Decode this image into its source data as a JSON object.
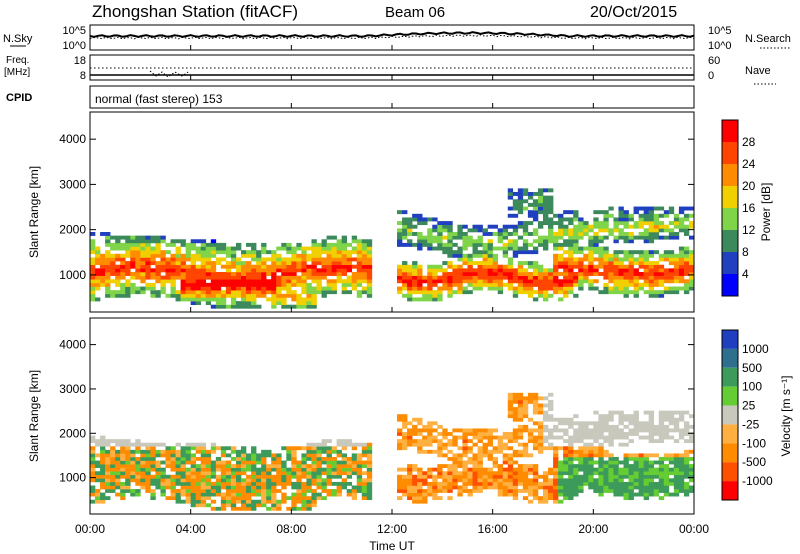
{
  "header": {
    "title": "Zhongshan Station (fitACF)",
    "beam": "Beam 06",
    "date": "20/Oct/2015"
  },
  "top_panels": {
    "nsky_label": "N.Sky",
    "nsearch_label": "N.Search",
    "nsky_ticks": [
      "10^5",
      "10^0"
    ],
    "nsearch_ticks": [
      "10^5",
      "10^0"
    ],
    "freq_label_line1": "Freq.",
    "freq_label_line2": "[MHz]",
    "freq_ticks": [
      "18",
      "8"
    ],
    "nave_label": "Nave",
    "nave_ticks": [
      "60",
      "0"
    ],
    "cpid_label": "CPID",
    "cpid_text": "normal (fast stereo) 153"
  },
  "chart_data": [
    {
      "type": "heatmap",
      "name": "power",
      "ylabel": "Slant Range [km]",
      "yticks": [
        1000,
        2000,
        3000,
        4000
      ],
      "ylim": [
        180,
        4600
      ],
      "xlim": [
        0,
        24
      ],
      "colorbar": {
        "label": "Power [dB]",
        "ticks": [
          "4",
          "8",
          "12",
          "16",
          "20",
          "24",
          "28"
        ],
        "colors": [
          "#0000ff",
          "#2040c0",
          "#3c8a5c",
          "#7fd44a",
          "#f0d000",
          "#ff8c00",
          "#ff4500",
          "#ff0000"
        ]
      }
    },
    {
      "type": "heatmap",
      "name": "velocity",
      "ylabel": "Slant Range [km]",
      "yticks": [
        1000,
        2000,
        3000,
        4000
      ],
      "ylim": [
        180,
        4600
      ],
      "xlim": [
        0,
        24
      ],
      "xticks": [
        "00:00",
        "04:00",
        "08:00",
        "12:00",
        "16:00",
        "20:00",
        "00:00"
      ],
      "xlabel": "Time UT",
      "colorbar": {
        "label": "Velocity [m s⁻¹]",
        "ticks": [
          "1000",
          "500",
          "100",
          "25",
          "-25",
          "-100",
          "-500",
          "-1000"
        ],
        "colors": [
          "#1f3fbf",
          "#2e6f8e",
          "#3c9a5a",
          "#66cc33",
          "#c8c8bc",
          "#ffb040",
          "#ff8c00",
          "#ff5000",
          "#ff0000"
        ]
      }
    }
  ]
}
